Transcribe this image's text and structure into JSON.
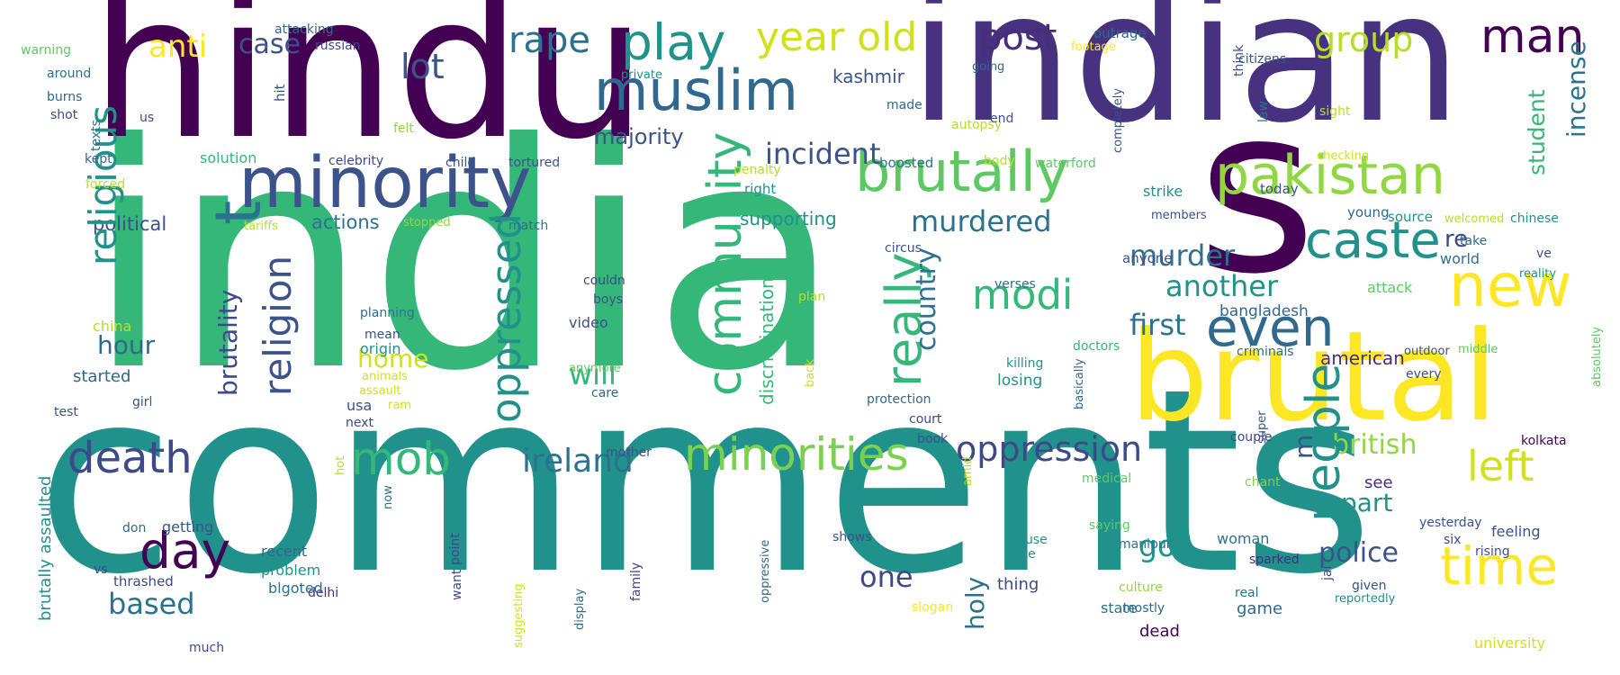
{
  "words": [
    {
      "text": "india",
      "color": "#35b779",
      "vertical": false
    },
    {
      "text": "comments",
      "color": "#21918c",
      "vertical": false
    },
    {
      "text": "hindu",
      "color": "#440154",
      "vertical": false
    },
    {
      "text": "indian",
      "color": "#46327e",
      "vertical": false
    },
    {
      "text": "s",
      "color": "#440154",
      "vertical": false
    },
    {
      "text": "brutal",
      "color": "#fde725",
      "vertical": false
    },
    {
      "text": "minority",
      "color": "#3b528b",
      "vertical": false
    },
    {
      "text": "muslim",
      "color": "#31688e",
      "vertical": false
    },
    {
      "text": "brutally",
      "color": "#5ec962",
      "vertical": false
    },
    {
      "text": "pakistan",
      "color": "#90d743",
      "vertical": false
    },
    {
      "text": "play",
      "color": "#21918c",
      "vertical": false
    },
    {
      "text": "man",
      "color": "#440154",
      "vertical": false
    },
    {
      "text": "year old",
      "color": "#d0e11c",
      "vertical": false
    },
    {
      "text": "post",
      "color": "#472d7b",
      "vertical": false
    },
    {
      "text": "group",
      "color": "#b5de2b",
      "vertical": false
    },
    {
      "text": "rape",
      "color": "#2c728e",
      "vertical": false
    },
    {
      "text": "lot",
      "color": "#3b528b",
      "vertical": false
    },
    {
      "text": "anti",
      "color": "#fde725",
      "vertical": false
    },
    {
      "text": "case",
      "color": "#3b528b",
      "vertical": false
    },
    {
      "text": "caste",
      "color": "#21918c",
      "vertical": false
    },
    {
      "text": "new",
      "color": "#fde725",
      "vertical": false
    },
    {
      "text": "even",
      "color": "#31688e",
      "vertical": false
    },
    {
      "text": "time",
      "color": "#fde725",
      "vertical": false
    },
    {
      "text": "left",
      "color": "#d0e11c",
      "vertical": false
    },
    {
      "text": "modi",
      "color": "#35b779",
      "vertical": false
    },
    {
      "text": "death",
      "color": "#3e4989",
      "vertical": false
    },
    {
      "text": "day",
      "color": "#440154",
      "vertical": false
    },
    {
      "text": "mob",
      "color": "#35b779",
      "vertical": false
    },
    {
      "text": "minorities",
      "color": "#7ad151",
      "vertical": false
    },
    {
      "text": "oppression",
      "color": "#3e4989",
      "vertical": false
    },
    {
      "text": "ireland",
      "color": "#2c728e",
      "vertical": false
    },
    {
      "text": "incident",
      "color": "#3b528b",
      "vertical": false
    },
    {
      "text": "murdered",
      "color": "#2c728e",
      "vertical": false
    },
    {
      "text": "murder",
      "color": "#2c728e",
      "vertical": false
    },
    {
      "text": "first",
      "color": "#2c728e",
      "vertical": false
    },
    {
      "text": "another",
      "color": "#21918c",
      "vertical": false
    },
    {
      "text": "british",
      "color": "#90d743",
      "vertical": false
    },
    {
      "text": "part",
      "color": "#21918c",
      "vertical": false
    },
    {
      "text": "police",
      "color": "#3b528b",
      "vertical": false
    },
    {
      "text": "one",
      "color": "#3e4989",
      "vertical": false
    },
    {
      "text": "go",
      "color": "#21918c",
      "vertical": false
    },
    {
      "text": "based",
      "color": "#2c728e",
      "vertical": false
    },
    {
      "text": "hour",
      "color": "#31688e",
      "vertical": false
    },
    {
      "text": "home",
      "color": "#d0e11c",
      "vertical": false
    },
    {
      "text": "will",
      "color": "#35b779",
      "vertical": false
    },
    {
      "text": "majority",
      "color": "#3b528b",
      "vertical": false
    },
    {
      "text": "kashmir",
      "color": "#3b528b",
      "vertical": false
    },
    {
      "text": "re",
      "color": "#3e4989",
      "vertical": false
    },
    {
      "text": "american",
      "color": "#472d7b",
      "vertical": false
    },
    {
      "text": "bangladesh",
      "color": "#31688e",
      "vertical": false
    },
    {
      "text": "political",
      "color": "#3b528b",
      "vertical": false
    },
    {
      "text": "actions",
      "color": "#2c728e",
      "vertical": false
    },
    {
      "text": "supporting",
      "color": "#21918c",
      "vertical": false
    },
    {
      "text": "solution",
      "color": "#35b779",
      "vertical": false
    },
    {
      "text": "recent",
      "color": "#31688e",
      "vertical": false
    },
    {
      "text": "problem",
      "color": "#21918c",
      "vertical": false
    },
    {
      "text": "video",
      "color": "#3b528b",
      "vertical": false
    },
    {
      "text": "origin",
      "color": "#21918c",
      "vertical": false
    },
    {
      "text": "started",
      "color": "#31688e",
      "vertical": false
    },
    {
      "text": "usa",
      "color": "#3b528b",
      "vertical": false
    },
    {
      "text": "china",
      "color": "#b5de2b",
      "vertical": false
    },
    {
      "text": "getting",
      "color": "#3b528b",
      "vertical": false
    },
    {
      "text": "thrashed",
      "color": "#3e4989",
      "vertical": false
    },
    {
      "text": "delhi",
      "color": "#472d7b",
      "vertical": false
    },
    {
      "text": "blgoted",
      "color": "#2c728e",
      "vertical": false
    },
    {
      "text": "woman",
      "color": "#2c728e",
      "vertical": false
    },
    {
      "text": "feeling",
      "color": "#3b528b",
      "vertical": false
    },
    {
      "text": "thing",
      "color": "#3e4989",
      "vertical": false
    },
    {
      "text": "state",
      "color": "#2c728e",
      "vertical": false
    },
    {
      "text": "game",
      "color": "#31688e",
      "vertical": false
    },
    {
      "text": "dead",
      "color": "#440154",
      "vertical": false
    },
    {
      "text": "university",
      "color": "#d0e11c",
      "vertical": false
    },
    {
      "text": "losing",
      "color": "#21918c",
      "vertical": false
    },
    {
      "text": "young",
      "color": "#31688e",
      "vertical": false
    },
    {
      "text": "today",
      "color": "#3b528b",
      "vertical": false
    },
    {
      "text": "strike",
      "color": "#21918c",
      "vertical": false
    },
    {
      "text": "right",
      "color": "#21918c",
      "vertical": false
    },
    {
      "text": "world",
      "color": "#2c728e",
      "vertical": false
    },
    {
      "text": "attack",
      "color": "#5ec962",
      "vertical": false
    },
    {
      "text": "anyone",
      "color": "#3b528b",
      "vertical": false
    },
    {
      "text": "doctors",
      "color": "#35b779",
      "vertical": false
    },
    {
      "text": "source",
      "color": "#21918c",
      "vertical": false
    },
    {
      "text": "see",
      "color": "#472d7b",
      "vertical": false
    },
    {
      "text": "boosted",
      "color": "#2c728e",
      "vertical": false
    },
    {
      "text": "incense",
      "color": "#2c728e",
      "vertical": true
    },
    {
      "text": "student",
      "color": "#35b779",
      "vertical": true
    },
    {
      "text": "religious",
      "color": "#21918c",
      "vertical": true
    },
    {
      "text": "religion",
      "color": "#3b528b",
      "vertical": true
    },
    {
      "text": "brutality",
      "color": "#3e4989",
      "vertical": true
    },
    {
      "text": "t",
      "color": "#2c728e",
      "vertical": true
    },
    {
      "text": "oppressed",
      "color": "#21918c",
      "vertical": true
    },
    {
      "text": "community",
      "color": "#35b779",
      "vertical": true
    },
    {
      "text": "really",
      "color": "#35b779",
      "vertical": true
    },
    {
      "text": "country",
      "color": "#2c728e",
      "vertical": true
    },
    {
      "text": "people",
      "color": "#21918c",
      "vertical": true
    },
    {
      "text": "m",
      "color": "#3b528b",
      "vertical": true
    },
    {
      "text": "holy",
      "color": "#2c728e",
      "vertical": true
    },
    {
      "text": "discrimination",
      "color": "#35b779",
      "vertical": true
    },
    {
      "text": "brutally assaulted",
      "color": "#21918c",
      "vertical": true
    },
    {
      "text": "ve",
      "color": "#3b528b",
      "vertical": false
    },
    {
      "text": "warning",
      "color": "#5ec962",
      "vertical": false
    },
    {
      "text": "around",
      "color": "#2c728e",
      "vertical": false
    },
    {
      "text": "burns",
      "color": "#31688e",
      "vertical": false
    },
    {
      "text": "shot",
      "color": "#3e4989",
      "vertical": false
    },
    {
      "text": "kept",
      "color": "#31688e",
      "vertical": false
    },
    {
      "text": "forced",
      "color": "#b5de2b",
      "vertical": false
    },
    {
      "text": "test",
      "color": "#3b528b",
      "vertical": false
    },
    {
      "text": "girl",
      "color": "#3b528b",
      "vertical": false
    },
    {
      "text": "vs",
      "color": "#3e4989",
      "vertical": false
    },
    {
      "text": "don",
      "color": "#31688e",
      "vertical": false
    },
    {
      "text": "much",
      "color": "#3e4989",
      "vertical": false
    },
    {
      "text": "attacking",
      "color": "#31688e",
      "vertical": false
    },
    {
      "text": "russian",
      "color": "#3e4989",
      "vertical": false
    },
    {
      "text": "us",
      "color": "#3e4989",
      "vertical": false
    },
    {
      "text": "celebrity",
      "color": "#3e4989",
      "vertical": false
    },
    {
      "text": "child",
      "color": "#3b528b",
      "vertical": false
    },
    {
      "text": "tortured",
      "color": "#3b528b",
      "vertical": false
    },
    {
      "text": "tariffs",
      "color": "#b5de2b",
      "vertical": false
    },
    {
      "text": "stopped",
      "color": "#90d743",
      "vertical": false
    },
    {
      "text": "match",
      "color": "#2c728e",
      "vertical": false
    },
    {
      "text": "felt",
      "color": "#90d743",
      "vertical": false
    },
    {
      "text": "private",
      "color": "#21918c",
      "vertical": false
    },
    {
      "text": "made",
      "color": "#31688e",
      "vertical": false
    },
    {
      "text": "autopsy",
      "color": "#b5de2b",
      "vertical": false
    },
    {
      "text": "end",
      "color": "#3b528b",
      "vertical": false
    },
    {
      "text": "going",
      "color": "#31688e",
      "vertical": false
    },
    {
      "text": "outrage",
      "color": "#31688e",
      "vertical": false
    },
    {
      "text": "footage",
      "color": "#fde725",
      "vertical": false
    },
    {
      "text": "citizens",
      "color": "#3b528b",
      "vertical": false
    },
    {
      "text": "sight",
      "color": "#b5de2b",
      "vertical": false
    },
    {
      "text": "checking",
      "color": "#d0e11c",
      "vertical": false
    },
    {
      "text": "waterford",
      "color": "#5ec962",
      "vertical": false
    },
    {
      "text": "members",
      "color": "#3b528b",
      "vertical": false
    },
    {
      "text": "welcomed",
      "color": "#b5de2b",
      "vertical": false
    },
    {
      "text": "chinese",
      "color": "#21918c",
      "vertical": false
    },
    {
      "text": "take",
      "color": "#31688e",
      "vertical": false
    },
    {
      "text": "reality",
      "color": "#21918c",
      "vertical": false
    },
    {
      "text": "penalty",
      "color": "#b5de2b",
      "vertical": false
    },
    {
      "text": "body",
      "color": "#b5de2b",
      "vertical": false
    },
    {
      "text": "couldn",
      "color": "#3e4989",
      "vertical": false
    },
    {
      "text": "boys",
      "color": "#3b528b",
      "vertical": false
    },
    {
      "text": "planning",
      "color": "#2c728e",
      "vertical": false
    },
    {
      "text": "mean",
      "color": "#3b528b",
      "vertical": false
    },
    {
      "text": "animals",
      "color": "#d0e11c",
      "vertical": false
    },
    {
      "text": "assault",
      "color": "#d0e11c",
      "vertical": false
    },
    {
      "text": "ram",
      "color": "#d0e11c",
      "vertical": false
    },
    {
      "text": "next",
      "color": "#3e4989",
      "vertical": false
    },
    {
      "text": "anymore",
      "color": "#5ec962",
      "vertical": false
    },
    {
      "text": "care",
      "color": "#31688e",
      "vertical": false
    },
    {
      "text": "circus",
      "color": "#3b528b",
      "vertical": false
    },
    {
      "text": "plan",
      "color": "#b5de2b",
      "vertical": false
    },
    {
      "text": "verses",
      "color": "#2c728e",
      "vertical": false
    },
    {
      "text": "killing",
      "color": "#21918c",
      "vertical": false
    },
    {
      "text": "protection",
      "color": "#31688e",
      "vertical": false
    },
    {
      "text": "court",
      "color": "#3e4989",
      "vertical": false
    },
    {
      "text": "book",
      "color": "#3b528b",
      "vertical": false
    },
    {
      "text": "mother",
      "color": "#3b528b",
      "vertical": false
    },
    {
      "text": "medical",
      "color": "#5ec962",
      "vertical": false
    },
    {
      "text": "criminals",
      "color": "#31688e",
      "vertical": false
    },
    {
      "text": "outdoor",
      "color": "#3b528b",
      "vertical": false
    },
    {
      "text": "middle",
      "color": "#5ec962",
      "vertical": false
    },
    {
      "text": "every",
      "color": "#3b528b",
      "vertical": false
    },
    {
      "text": "couple",
      "color": "#3e4989",
      "vertical": false
    },
    {
      "text": "kolkata",
      "color": "#440154",
      "vertical": false
    },
    {
      "text": "chant",
      "color": "#7ad151",
      "vertical": false
    },
    {
      "text": "yesterday",
      "color": "#3b528b",
      "vertical": false
    },
    {
      "text": "six",
      "color": "#3e4989",
      "vertical": false
    },
    {
      "text": "rising",
      "color": "#3b528b",
      "vertical": false
    },
    {
      "text": "saying",
      "color": "#5ec962",
      "vertical": false
    },
    {
      "text": "manipur",
      "color": "#2c728e",
      "vertical": false
    },
    {
      "text": "refuse",
      "color": "#21918c",
      "vertical": false
    },
    {
      "text": "side",
      "color": "#21918c",
      "vertical": false
    },
    {
      "text": "shows",
      "color": "#3b528b",
      "vertical": false
    },
    {
      "text": "culture",
      "color": "#90d743",
      "vertical": false
    },
    {
      "text": "mostly",
      "color": "#31688e",
      "vertical": false
    },
    {
      "text": "sparked",
      "color": "#472d7b",
      "vertical": false
    },
    {
      "text": "given",
      "color": "#3b528b",
      "vertical": false
    },
    {
      "text": "real",
      "color": "#2c728e",
      "vertical": false
    },
    {
      "text": "reportedly",
      "color": "#21918c",
      "vertical": false
    },
    {
      "text": "slogan",
      "color": "#fde725",
      "vertical": false
    },
    {
      "text": "hot",
      "color": "#b5de2b",
      "vertical": true
    },
    {
      "text": "hit",
      "color": "#3b528b",
      "vertical": true
    },
    {
      "text": "texts",
      "color": "#2c728e",
      "vertical": true
    },
    {
      "text": "now",
      "color": "#2c728e",
      "vertical": true
    },
    {
      "text": "point",
      "color": "#3e4989",
      "vertical": true
    },
    {
      "text": "want",
      "color": "#3e4989",
      "vertical": true
    },
    {
      "text": "suggesting",
      "color": "#d0e11c",
      "vertical": true
    },
    {
      "text": "display",
      "color": "#31688e",
      "vertical": true
    },
    {
      "text": "family",
      "color": "#3e4989",
      "vertical": true
    },
    {
      "text": "oppressive",
      "color": "#31688e",
      "vertical": true
    },
    {
      "text": "amid",
      "color": "#b5de2b",
      "vertical": true
    },
    {
      "text": "back",
      "color": "#d0e11c",
      "vertical": true
    },
    {
      "text": "basically",
      "color": "#31688e",
      "vertical": true
    },
    {
      "text": "super",
      "color": "#3b528b",
      "vertical": true
    },
    {
      "text": "jai",
      "color": "#3e4989",
      "vertical": true
    },
    {
      "text": "completely",
      "color": "#3b528b",
      "vertical": true
    },
    {
      "text": "think",
      "color": "#3b528b",
      "vertical": true
    },
    {
      "text": "law",
      "color": "#2c728e",
      "vertical": true
    },
    {
      "text": "absolutely",
      "color": "#5ec962",
      "vertical": true
    }
  ]
}
